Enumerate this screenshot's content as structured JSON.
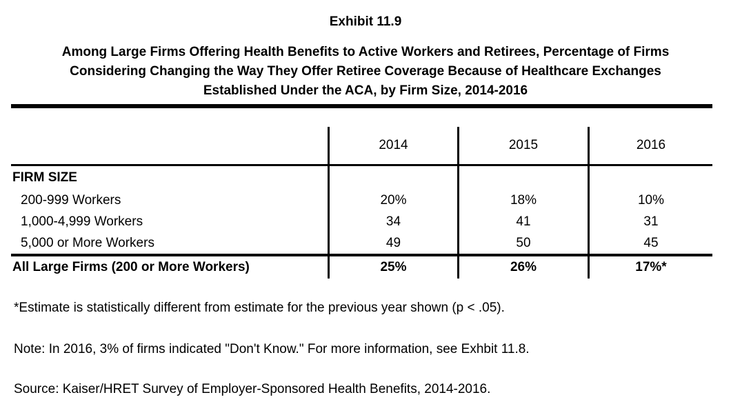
{
  "exhibit": {
    "title": "Exhibit 11.9",
    "subtitle_lines": [
      "Among Large Firms Offering Health Benefits to Active Workers and Retirees, Percentage of Firms",
      "Considering Changing the Way They Offer Retiree Coverage Because of Healthcare Exchanges",
      "Established Under the ACA, by Firm Size, 2014-2016"
    ]
  },
  "table": {
    "column_headers": [
      "2014",
      "2015",
      "2016"
    ],
    "section_label": "FIRM SIZE",
    "rows": [
      {
        "label": "200-999 Workers",
        "values": [
          "20%",
          "18%",
          "10%"
        ]
      },
      {
        "label": "1,000-4,999 Workers",
        "values": [
          "34",
          "41",
          "31"
        ]
      },
      {
        "label": "5,000 or More Workers",
        "values": [
          "49",
          "50",
          "45"
        ]
      }
    ],
    "total_row": {
      "label": "All Large Firms (200 or More Workers)",
      "values": [
        "25%",
        "26%",
        "17%*"
      ]
    }
  },
  "footnotes": {
    "asterisk": "*Estimate is statistically different from estimate for the previous year shown (p < .05).",
    "note": "Note: In 2016, 3% of firms indicated \"Don't Know.\" For more information, see Exhbit 11.8.",
    "source": "Source: Kaiser/HRET Survey of Employer-Sponsored Health Benefits, 2014-2016."
  },
  "colors": {
    "text": "#000000",
    "background": "#ffffff",
    "rule": "#000000"
  },
  "chart_data": {
    "type": "table",
    "title": "Among Large Firms Offering Health Benefits to Active Workers and Retirees, Percentage of Firms Considering Changing the Way They Offer Retiree Coverage Because of Healthcare Exchanges Established Under the ACA, by Firm Size, 2014-2016",
    "categories": [
      "2014",
      "2015",
      "2016"
    ],
    "series": [
      {
        "name": "200-999 Workers",
        "values": [
          20,
          18,
          10
        ]
      },
      {
        "name": "1,000-4,999 Workers",
        "values": [
          34,
          41,
          31
        ]
      },
      {
        "name": "5,000 or More Workers",
        "values": [
          49,
          50,
          45
        ]
      },
      {
        "name": "All Large Firms (200 or More Workers)",
        "values": [
          25,
          26,
          17
        ]
      }
    ]
  }
}
